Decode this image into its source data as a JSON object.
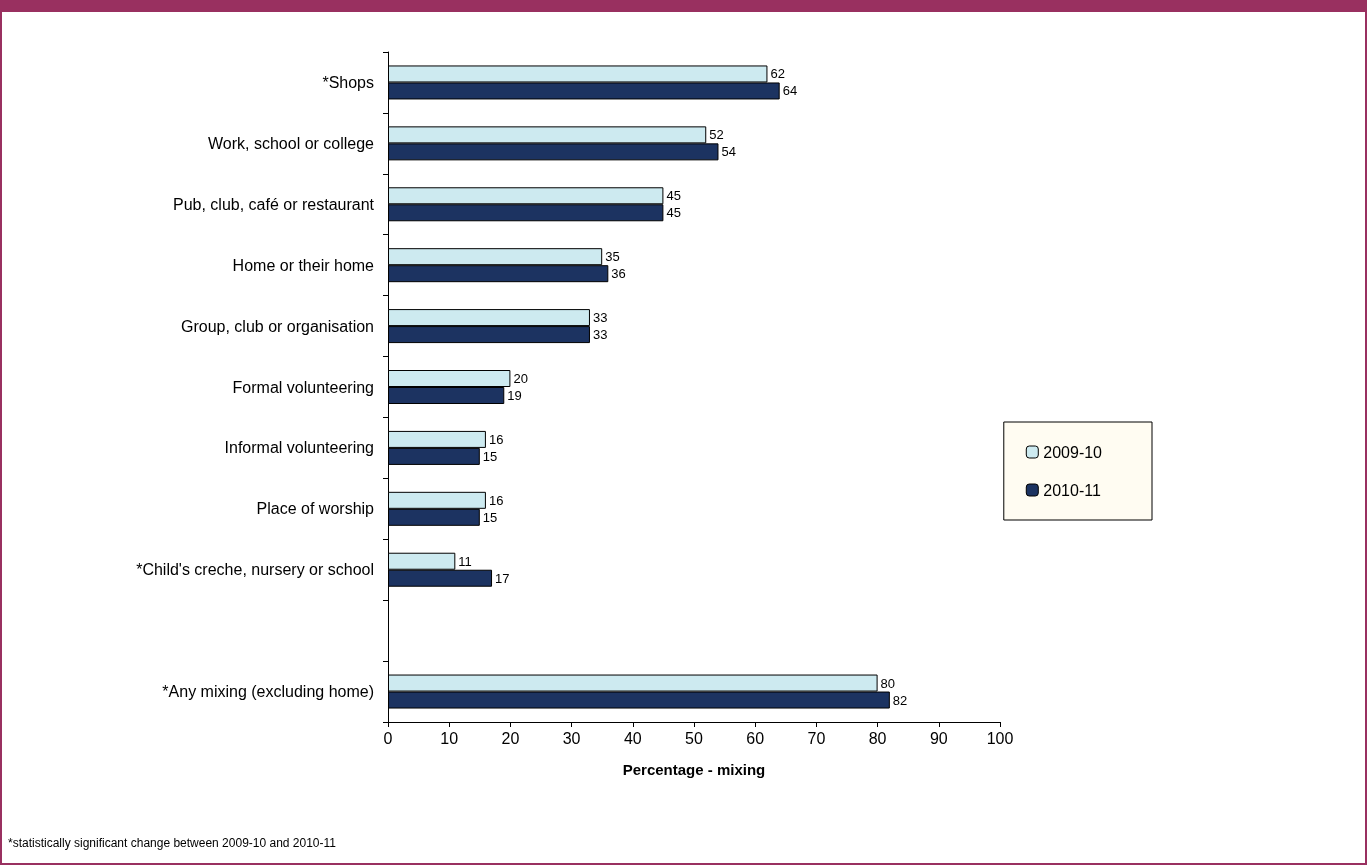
{
  "chart_data": {
    "type": "bar",
    "orientation": "horizontal",
    "categories": [
      "*Shops",
      "Work, school or college",
      "Pub, club, café or restaurant",
      "Home or their home",
      "Group, club or organisation",
      "Formal volunteering",
      "Informal volunteering",
      "Place of worship",
      "*Child's creche, nursery or school",
      null,
      "*Any mixing (excluding home)"
    ],
    "series": [
      {
        "name": "2009-10",
        "color": "#cdeaf0",
        "values": [
          62,
          52,
          45,
          35,
          33,
          20,
          16,
          16,
          11,
          null,
          80
        ]
      },
      {
        "name": "2010-11",
        "color": "#1c3361",
        "values": [
          64,
          54,
          45,
          36,
          33,
          19,
          15,
          15,
          17,
          null,
          82
        ]
      }
    ],
    "xlim": [
      0,
      100
    ],
    "xticks": [
      0,
      10,
      20,
      30,
      40,
      50,
      60,
      70,
      80,
      90,
      100
    ],
    "xlabel": "Percentage - mixing",
    "data_labels": true,
    "grid": false,
    "legend": "right",
    "annotations": [
      "*statistically significant change between 2009-10 and 2010-11"
    ]
  }
}
